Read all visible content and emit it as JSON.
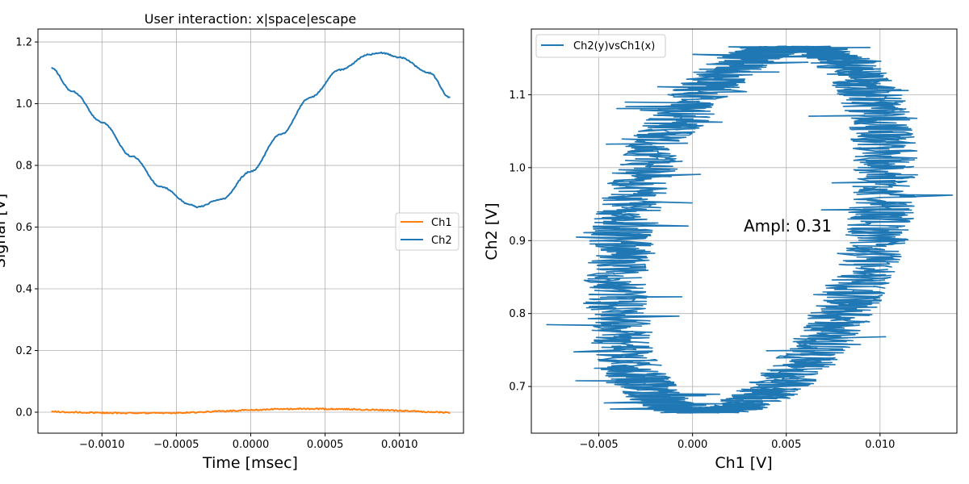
{
  "chart_data": [
    {
      "type": "line",
      "title": "User interaction: x|space|escape",
      "xlabel": "Time [msec]",
      "ylabel": "Signal [V]",
      "xlim": [
        -0.00143,
        0.00143
      ],
      "ylim": [
        -0.068,
        1.242
      ],
      "xticks": [
        -0.001,
        -0.0005,
        0.0,
        0.0005,
        0.001
      ],
      "xtick_labels": [
        "−0.0010",
        "−0.0005",
        "0.0000",
        "0.0005",
        "0.0010"
      ],
      "yticks": [
        0.0,
        0.2,
        0.4,
        0.6,
        0.8,
        1.0,
        1.2
      ],
      "ytick_labels": [
        "0.0",
        "0.2",
        "0.4",
        "0.6",
        "0.8",
        "1.0",
        "1.2"
      ],
      "grid": true,
      "legend_position": "center-right",
      "series": [
        {
          "name": "Ch1",
          "color": "#ff7f0e",
          "x": [
            -0.00134,
            -0.0012,
            -0.001,
            -0.0008,
            -0.0006,
            -0.0004,
            -0.0002,
            0.0,
            0.0002,
            0.0004,
            0.0006,
            0.0008,
            0.001,
            0.0012,
            0.00134
          ],
          "y": [
            0.002,
            0.0,
            -0.002,
            -0.003,
            -0.003,
            -0.001,
            0.003,
            0.007,
            0.01,
            0.011,
            0.01,
            0.008,
            0.005,
            0.001,
            -0.001
          ]
        },
        {
          "name": "Ch2",
          "color": "#1f77b4",
          "x": [
            -0.00134,
            -0.0012,
            -0.001,
            -0.0008,
            -0.0006,
            -0.0004,
            -0.00036,
            -0.0002,
            0.0,
            0.0002,
            0.0004,
            0.0006,
            0.0008,
            0.00088,
            0.001,
            0.0012,
            0.00134
          ],
          "y": [
            1.115,
            1.04,
            0.94,
            0.83,
            0.73,
            0.672,
            0.665,
            0.69,
            0.78,
            0.9,
            1.02,
            1.11,
            1.16,
            1.165,
            1.15,
            1.1,
            1.02
          ]
        }
      ]
    },
    {
      "type": "line",
      "xlabel": "Ch1 [V]",
      "ylabel": "Ch2 [V]",
      "xlim": [
        -0.0086,
        0.0141
      ],
      "ylim": [
        0.636,
        1.19
      ],
      "xticks": [
        -0.005,
        0.0,
        0.005,
        0.01
      ],
      "xtick_labels": [
        "−0.005",
        "0.000",
        "0.005",
        "0.010"
      ],
      "yticks": [
        0.7,
        0.8,
        0.9,
        1.0,
        1.1
      ],
      "ytick_labels": [
        "0.7",
        "0.8",
        "0.9",
        "1.0",
        "1.1"
      ],
      "grid": true,
      "legend_position": "top-left",
      "annotation": "Ampl: 0.31",
      "series": [
        {
          "name": "Ch2(y)vsCh1(x)",
          "color": "#1f77b4",
          "shape": "noisy ellipse",
          "center_x": 0.0031,
          "center_y": 0.915,
          "amp_x": 0.0072,
          "amp_y": 0.25,
          "phase_deg": 70,
          "noise_x": 0.0035,
          "noise_y": 0.003
        }
      ]
    }
  ]
}
